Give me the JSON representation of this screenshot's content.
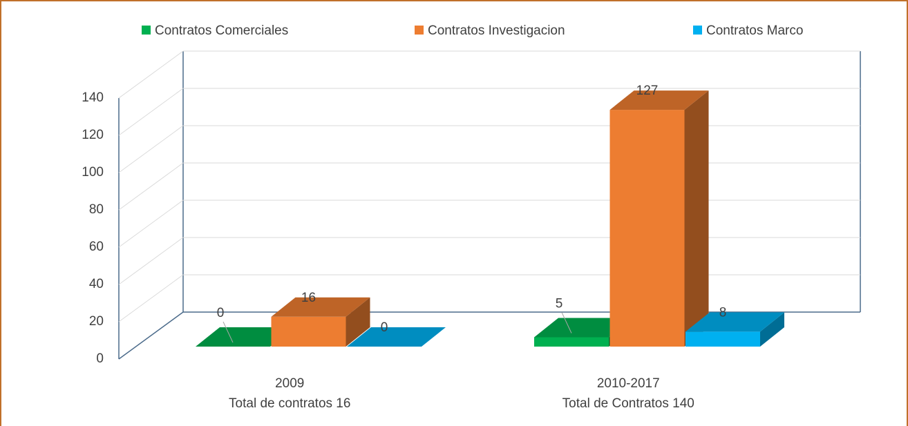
{
  "chart_data": {
    "type": "bar3d",
    "categories": [
      "2009",
      "2010-2017"
    ],
    "category_notes": [
      "Total de contratos 16",
      "Total de Contratos 140"
    ],
    "series": [
      {
        "name": "Contratos Comerciales",
        "color": "#00b050",
        "values": [
          0,
          5
        ]
      },
      {
        "name": "Contratos Investigacion",
        "color": "#ed7d31",
        "values": [
          16,
          127
        ]
      },
      {
        "name": "Contratos Marco",
        "color": "#00b0f0",
        "values": [
          0,
          8
        ]
      }
    ],
    "ylim": [
      0,
      140
    ],
    "yticks": [
      0,
      20,
      40,
      60,
      80,
      100,
      120,
      140
    ],
    "grid": true,
    "legend": "top"
  }
}
